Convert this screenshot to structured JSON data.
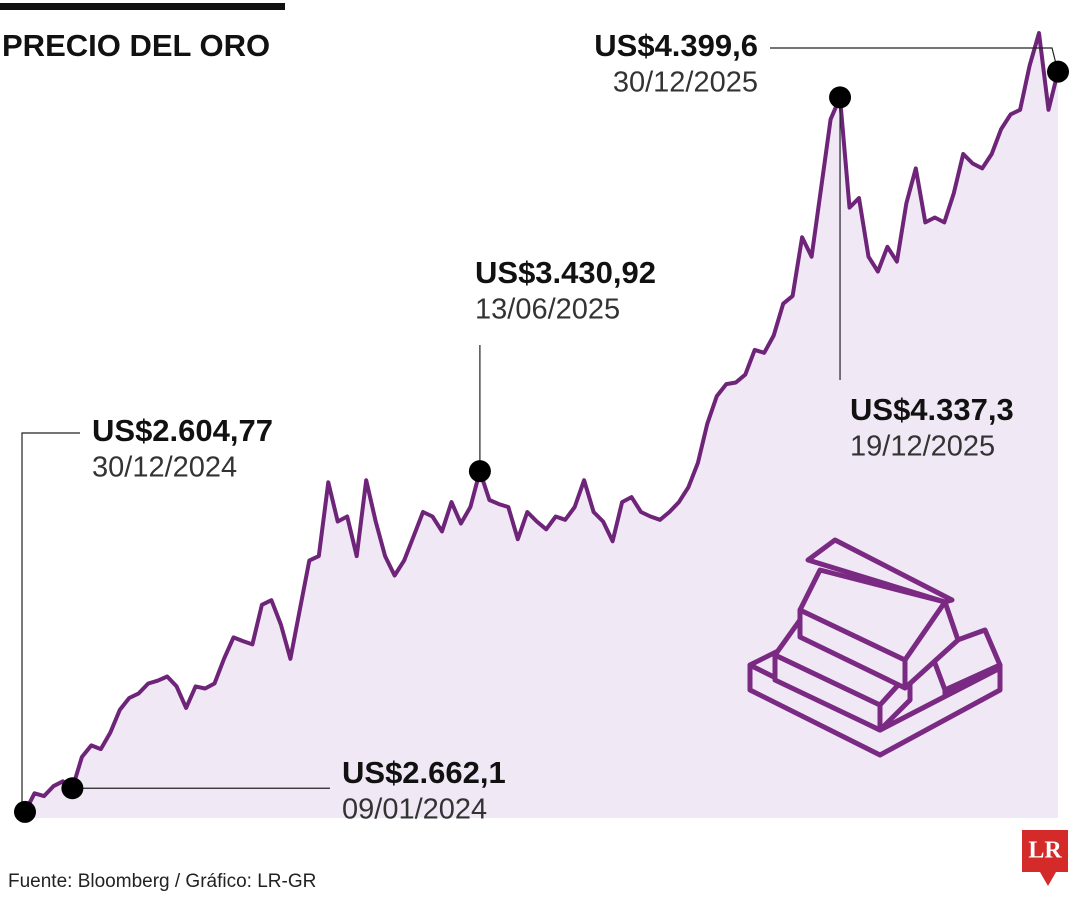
{
  "chart_data": {
    "type": "line",
    "title": "PRECIO DEL ORO",
    "source": "Fuente: Bloomberg / Gráfico: LR-GR",
    "logo": "LR",
    "color": "#6e2478",
    "fill": "#f1e8f5",
    "ylim": [
      2590,
      4520
    ],
    "values": [
      2604.77,
      2650,
      2643,
      2667,
      2679,
      2662.1,
      2738,
      2766,
      2757,
      2797,
      2852,
      2881,
      2892,
      2916,
      2923,
      2933,
      2909,
      2857,
      2909,
      2904,
      2916,
      2976,
      3028,
      3019,
      3011,
      3107,
      3118,
      3059,
      2976,
      3095,
      3214,
      3225,
      3404,
      3309,
      3321,
      3225,
      3409,
      3309,
      3225,
      3178,
      3214,
      3273,
      3332,
      3321,
      3285,
      3356,
      3304,
      3344,
      3430.92,
      3361,
      3351,
      3344,
      3266,
      3332,
      3309,
      3290,
      3321,
      3313,
      3344,
      3409,
      3332,
      3309,
      3261,
      3356,
      3368,
      3332,
      3321,
      3313,
      3332,
      3356,
      3392,
      3451,
      3546,
      3613,
      3642,
      3646,
      3665,
      3725,
      3718,
      3760,
      3837,
      3856,
      3998,
      3951,
      4117,
      4284,
      4337.3,
      4070,
      4093,
      3951,
      3915,
      3975,
      3939,
      4081,
      4165,
      4034,
      4046,
      4034,
      4105,
      4200,
      4177,
      4165,
      4200,
      4260,
      4296,
      4307,
      4414,
      4493,
      4307,
      4399.6
    ],
    "annotations": [
      {
        "point": 0,
        "label": "US$2.604,77",
        "date": "30/12/2024"
      },
      {
        "point": 5,
        "label": "US$2.662,1",
        "date": "09/01/2024"
      },
      {
        "point": 48,
        "label": "US$3.430,92",
        "date": "13/06/2025"
      },
      {
        "point": 86,
        "label": "US$4.337,3",
        "date": "19/12/2025"
      },
      {
        "point": 109,
        "label": "US$4.399,6",
        "date": "30/12/2025"
      }
    ]
  }
}
